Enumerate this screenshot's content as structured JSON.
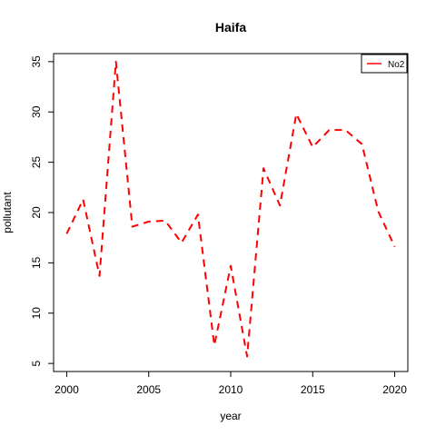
{
  "chart_data": {
    "type": "line",
    "title": "Haifa",
    "xlabel": "year",
    "ylabel": "pollutant",
    "xlim": [
      1999.2,
      2020.8
    ],
    "ylim": [
      4.2,
      35.8
    ],
    "x_ticks": [
      "2000",
      "2005",
      "2010",
      "2015",
      "2020"
    ],
    "y_ticks": [
      "5",
      "10",
      "15",
      "20",
      "25",
      "30",
      "35"
    ],
    "legend": {
      "position": "top-right",
      "entries": [
        "No2"
      ]
    },
    "grid": false,
    "series": [
      {
        "name": "No2",
        "color": "#ff0000",
        "line_style": "dashed",
        "points": [
          [
            2000,
            17.9
          ],
          [
            2001,
            21.3
          ],
          [
            2002,
            13.7
          ],
          [
            2003,
            35.0
          ],
          [
            2004,
            18.6
          ],
          [
            2005,
            19.1
          ],
          [
            2006,
            19.2
          ],
          [
            2007,
            17.0
          ],
          [
            2008,
            19.8
          ],
          [
            2009,
            6.8
          ],
          [
            2010,
            14.7
          ],
          [
            2011,
            5.7
          ],
          [
            2012,
            24.4
          ],
          [
            2013,
            20.7
          ],
          [
            2014,
            29.8
          ],
          [
            2015,
            26.5
          ],
          [
            2016,
            28.2
          ],
          [
            2017,
            28.2
          ],
          [
            2018,
            26.8
          ],
          [
            2019,
            20.1
          ],
          [
            2020,
            16.6
          ]
        ]
      }
    ]
  }
}
